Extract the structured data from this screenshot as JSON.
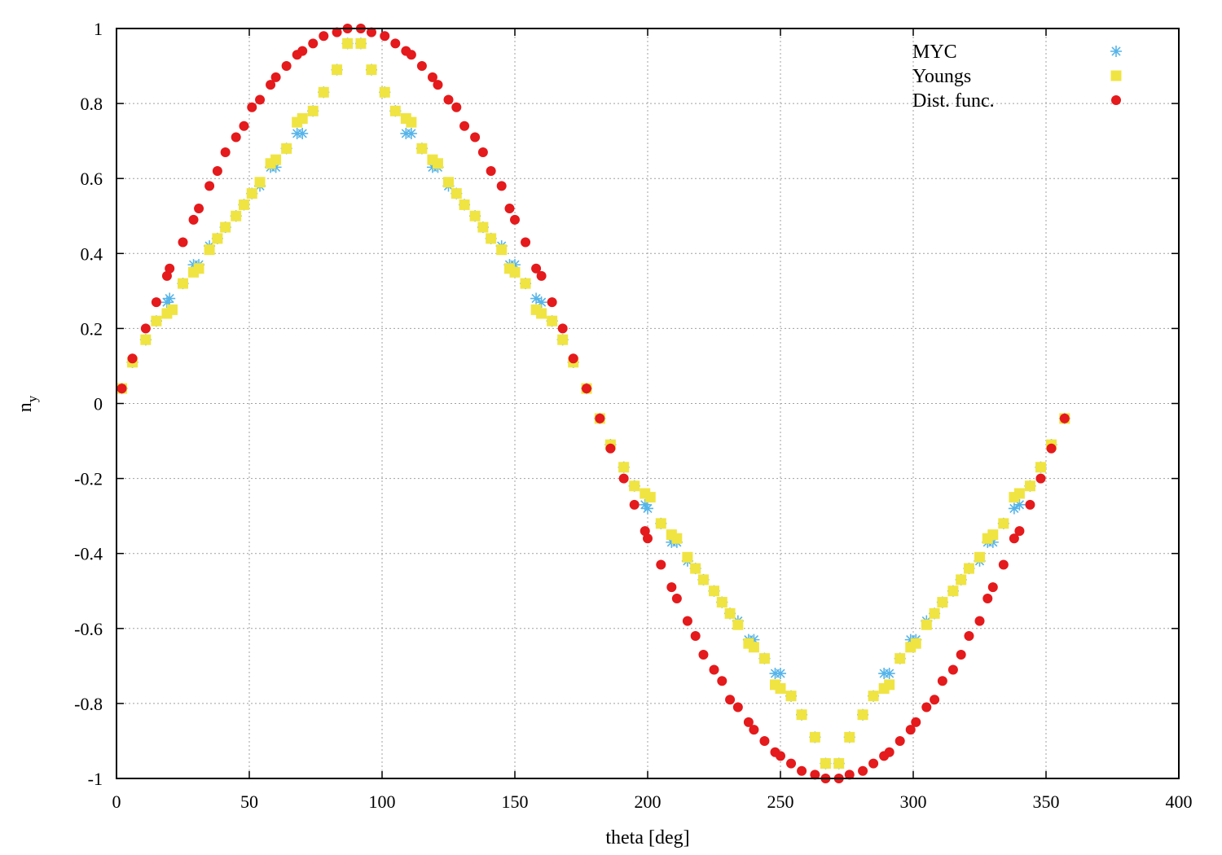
{
  "chart_data": {
    "type": "scatter",
    "xlabel": "theta [deg]",
    "ylabel_main": "n",
    "ylabel_sub": "y",
    "xlim": [
      0,
      400
    ],
    "ylim": [
      -1,
      1
    ],
    "xticks": [
      "0",
      "50",
      "100",
      "150",
      "200",
      "250",
      "300",
      "350",
      "400"
    ],
    "yticks": [
      "-1",
      "-0.8",
      "-0.6",
      "-0.4",
      "-0.2",
      "0",
      "0.2",
      "0.4",
      "0.6",
      "0.8",
      "1"
    ],
    "grid": true,
    "legend_position": "top-right",
    "series": [
      {
        "name": "MYC",
        "marker": "asterisk",
        "color": "#56b4e9",
        "points": [
          [
            2,
            0.04
          ],
          [
            6,
            0.11
          ],
          [
            11,
            0.17
          ],
          [
            15,
            0.22
          ],
          [
            19,
            0.27
          ],
          [
            20,
            0.28
          ],
          [
            25,
            0.32
          ],
          [
            29,
            0.37
          ],
          [
            31,
            0.37
          ],
          [
            35,
            0.42
          ],
          [
            38,
            0.44
          ],
          [
            41,
            0.47
          ],
          [
            45,
            0.5
          ],
          [
            48,
            0.53
          ],
          [
            51,
            0.56
          ],
          [
            54,
            0.58
          ],
          [
            58,
            0.63
          ],
          [
            60,
            0.63
          ],
          [
            64,
            0.68
          ],
          [
            68,
            0.72
          ],
          [
            70,
            0.72
          ],
          [
            74,
            0.78
          ],
          [
            78,
            0.83
          ],
          [
            83,
            0.89
          ],
          [
            87,
            0.96
          ],
          [
            92,
            0.96
          ],
          [
            96,
            0.89
          ],
          [
            101,
            0.83
          ],
          [
            105,
            0.78
          ],
          [
            109,
            0.72
          ],
          [
            111,
            0.72
          ],
          [
            115,
            0.68
          ],
          [
            119,
            0.63
          ],
          [
            121,
            0.63
          ],
          [
            125,
            0.58
          ],
          [
            128,
            0.56
          ],
          [
            131,
            0.53
          ],
          [
            135,
            0.5
          ],
          [
            138,
            0.47
          ],
          [
            141,
            0.44
          ],
          [
            145,
            0.42
          ],
          [
            148,
            0.37
          ],
          [
            150,
            0.37
          ],
          [
            154,
            0.32
          ],
          [
            158,
            0.28
          ],
          [
            160,
            0.27
          ],
          [
            164,
            0.22
          ],
          [
            168,
            0.17
          ],
          [
            172,
            0.11
          ],
          [
            177,
            0.04
          ],
          [
            182,
            -0.04
          ],
          [
            186,
            -0.11
          ],
          [
            191,
            -0.17
          ],
          [
            195,
            -0.22
          ],
          [
            199,
            -0.27
          ],
          [
            200,
            -0.28
          ],
          [
            205,
            -0.32
          ],
          [
            209,
            -0.37
          ],
          [
            211,
            -0.37
          ],
          [
            215,
            -0.42
          ],
          [
            218,
            -0.44
          ],
          [
            221,
            -0.47
          ],
          [
            225,
            -0.5
          ],
          [
            228,
            -0.53
          ],
          [
            231,
            -0.56
          ],
          [
            234,
            -0.58
          ],
          [
            238,
            -0.63
          ],
          [
            240,
            -0.63
          ],
          [
            244,
            -0.68
          ],
          [
            248,
            -0.72
          ],
          [
            250,
            -0.72
          ],
          [
            254,
            -0.78
          ],
          [
            258,
            -0.83
          ],
          [
            263,
            -0.89
          ],
          [
            267,
            -0.96
          ],
          [
            272,
            -0.96
          ],
          [
            276,
            -0.89
          ],
          [
            281,
            -0.83
          ],
          [
            285,
            -0.78
          ],
          [
            289,
            -0.72
          ],
          [
            291,
            -0.72
          ],
          [
            295,
            -0.68
          ],
          [
            299,
            -0.63
          ],
          [
            301,
            -0.63
          ],
          [
            305,
            -0.58
          ],
          [
            308,
            -0.56
          ],
          [
            311,
            -0.53
          ],
          [
            315,
            -0.5
          ],
          [
            318,
            -0.47
          ],
          [
            321,
            -0.44
          ],
          [
            325,
            -0.42
          ],
          [
            328,
            -0.37
          ],
          [
            330,
            -0.37
          ],
          [
            334,
            -0.32
          ],
          [
            338,
            -0.28
          ],
          [
            340,
            -0.27
          ],
          [
            344,
            -0.22
          ],
          [
            348,
            -0.17
          ],
          [
            352,
            -0.11
          ],
          [
            357,
            -0.04
          ]
        ]
      },
      {
        "name": "Youngs",
        "marker": "square",
        "color": "#f0e442",
        "points": [
          [
            2,
            0.04
          ],
          [
            6,
            0.11
          ],
          [
            11,
            0.17
          ],
          [
            15,
            0.22
          ],
          [
            19,
            0.24
          ],
          [
            21,
            0.25
          ],
          [
            25,
            0.32
          ],
          [
            29,
            0.35
          ],
          [
            31,
            0.36
          ],
          [
            35,
            0.41
          ],
          [
            38,
            0.44
          ],
          [
            41,
            0.47
          ],
          [
            45,
            0.5
          ],
          [
            48,
            0.53
          ],
          [
            51,
            0.56
          ],
          [
            54,
            0.59
          ],
          [
            58,
            0.64
          ],
          [
            60,
            0.65
          ],
          [
            64,
            0.68
          ],
          [
            68,
            0.75
          ],
          [
            70,
            0.76
          ],
          [
            74,
            0.78
          ],
          [
            78,
            0.83
          ],
          [
            83,
            0.89
          ],
          [
            87,
            0.96
          ],
          [
            92,
            0.96
          ],
          [
            96,
            0.89
          ],
          [
            101,
            0.83
          ],
          [
            105,
            0.78
          ],
          [
            109,
            0.76
          ],
          [
            111,
            0.75
          ],
          [
            115,
            0.68
          ],
          [
            119,
            0.65
          ],
          [
            121,
            0.64
          ],
          [
            125,
            0.59
          ],
          [
            128,
            0.56
          ],
          [
            131,
            0.53
          ],
          [
            135,
            0.5
          ],
          [
            138,
            0.47
          ],
          [
            141,
            0.44
          ],
          [
            145,
            0.41
          ],
          [
            148,
            0.36
          ],
          [
            150,
            0.35
          ],
          [
            154,
            0.32
          ],
          [
            158,
            0.25
          ],
          [
            160,
            0.24
          ],
          [
            164,
            0.22
          ],
          [
            168,
            0.17
          ],
          [
            172,
            0.11
          ],
          [
            177,
            0.04
          ],
          [
            182,
            -0.04
          ],
          [
            186,
            -0.11
          ],
          [
            191,
            -0.17
          ],
          [
            195,
            -0.22
          ],
          [
            199,
            -0.24
          ],
          [
            201,
            -0.25
          ],
          [
            205,
            -0.32
          ],
          [
            209,
            -0.35
          ],
          [
            211,
            -0.36
          ],
          [
            215,
            -0.41
          ],
          [
            218,
            -0.44
          ],
          [
            221,
            -0.47
          ],
          [
            225,
            -0.5
          ],
          [
            228,
            -0.53
          ],
          [
            231,
            -0.56
          ],
          [
            234,
            -0.59
          ],
          [
            238,
            -0.64
          ],
          [
            240,
            -0.65
          ],
          [
            244,
            -0.68
          ],
          [
            248,
            -0.75
          ],
          [
            250,
            -0.76
          ],
          [
            254,
            -0.78
          ],
          [
            258,
            -0.83
          ],
          [
            263,
            -0.89
          ],
          [
            267,
            -0.96
          ],
          [
            272,
            -0.96
          ],
          [
            276,
            -0.89
          ],
          [
            281,
            -0.83
          ],
          [
            285,
            -0.78
          ],
          [
            289,
            -0.76
          ],
          [
            291,
            -0.75
          ],
          [
            295,
            -0.68
          ],
          [
            299,
            -0.65
          ],
          [
            301,
            -0.64
          ],
          [
            305,
            -0.59
          ],
          [
            308,
            -0.56
          ],
          [
            311,
            -0.53
          ],
          [
            315,
            -0.5
          ],
          [
            318,
            -0.47
          ],
          [
            321,
            -0.44
          ],
          [
            325,
            -0.41
          ],
          [
            328,
            -0.36
          ],
          [
            330,
            -0.35
          ],
          [
            334,
            -0.32
          ],
          [
            338,
            -0.25
          ],
          [
            340,
            -0.24
          ],
          [
            344,
            -0.22
          ],
          [
            348,
            -0.17
          ],
          [
            352,
            -0.11
          ],
          [
            357,
            -0.04
          ]
        ]
      },
      {
        "name": "Dist. func.",
        "marker": "circle",
        "color": "#e41a1c",
        "points": [
          [
            2,
            0.04
          ],
          [
            6,
            0.12
          ],
          [
            11,
            0.2
          ],
          [
            15,
            0.27
          ],
          [
            19,
            0.34
          ],
          [
            20,
            0.36
          ],
          [
            25,
            0.43
          ],
          [
            29,
            0.49
          ],
          [
            31,
            0.52
          ],
          [
            35,
            0.58
          ],
          [
            38,
            0.62
          ],
          [
            41,
            0.67
          ],
          [
            45,
            0.71
          ],
          [
            48,
            0.74
          ],
          [
            51,
            0.79
          ],
          [
            54,
            0.81
          ],
          [
            58,
            0.85
          ],
          [
            60,
            0.87
          ],
          [
            64,
            0.9
          ],
          [
            68,
            0.93
          ],
          [
            70,
            0.94
          ],
          [
            74,
            0.96
          ],
          [
            78,
            0.98
          ],
          [
            83,
            0.99
          ],
          [
            87,
            1.0
          ],
          [
            92,
            1.0
          ],
          [
            96,
            0.99
          ],
          [
            101,
            0.98
          ],
          [
            105,
            0.96
          ],
          [
            109,
            0.94
          ],
          [
            111,
            0.93
          ],
          [
            115,
            0.9
          ],
          [
            119,
            0.87
          ],
          [
            121,
            0.85
          ],
          [
            125,
            0.81
          ],
          [
            128,
            0.79
          ],
          [
            131,
            0.74
          ],
          [
            135,
            0.71
          ],
          [
            138,
            0.67
          ],
          [
            141,
            0.62
          ],
          [
            145,
            0.58
          ],
          [
            148,
            0.52
          ],
          [
            150,
            0.49
          ],
          [
            154,
            0.43
          ],
          [
            158,
            0.36
          ],
          [
            160,
            0.34
          ],
          [
            164,
            0.27
          ],
          [
            168,
            0.2
          ],
          [
            172,
            0.12
          ],
          [
            177,
            0.04
          ],
          [
            182,
            -0.04
          ],
          [
            186,
            -0.12
          ],
          [
            191,
            -0.2
          ],
          [
            195,
            -0.27
          ],
          [
            199,
            -0.34
          ],
          [
            200,
            -0.36
          ],
          [
            205,
            -0.43
          ],
          [
            209,
            -0.49
          ],
          [
            211,
            -0.52
          ],
          [
            215,
            -0.58
          ],
          [
            218,
            -0.62
          ],
          [
            221,
            -0.67
          ],
          [
            225,
            -0.71
          ],
          [
            228,
            -0.74
          ],
          [
            231,
            -0.79
          ],
          [
            234,
            -0.81
          ],
          [
            238,
            -0.85
          ],
          [
            240,
            -0.87
          ],
          [
            244,
            -0.9
          ],
          [
            248,
            -0.93
          ],
          [
            250,
            -0.94
          ],
          [
            254,
            -0.96
          ],
          [
            258,
            -0.98
          ],
          [
            263,
            -0.99
          ],
          [
            267,
            -1.0
          ],
          [
            272,
            -1.0
          ],
          [
            276,
            -0.99
          ],
          [
            281,
            -0.98
          ],
          [
            285,
            -0.96
          ],
          [
            289,
            -0.94
          ],
          [
            291,
            -0.93
          ],
          [
            295,
            -0.9
          ],
          [
            299,
            -0.87
          ],
          [
            301,
            -0.85
          ],
          [
            305,
            -0.81
          ],
          [
            308,
            -0.79
          ],
          [
            311,
            -0.74
          ],
          [
            315,
            -0.71
          ],
          [
            318,
            -0.67
          ],
          [
            321,
            -0.62
          ],
          [
            325,
            -0.58
          ],
          [
            328,
            -0.52
          ],
          [
            330,
            -0.49
          ],
          [
            334,
            -0.43
          ],
          [
            338,
            -0.36
          ],
          [
            340,
            -0.34
          ],
          [
            344,
            -0.27
          ],
          [
            348,
            -0.2
          ],
          [
            352,
            -0.12
          ],
          [
            357,
            -0.04
          ]
        ]
      }
    ]
  }
}
